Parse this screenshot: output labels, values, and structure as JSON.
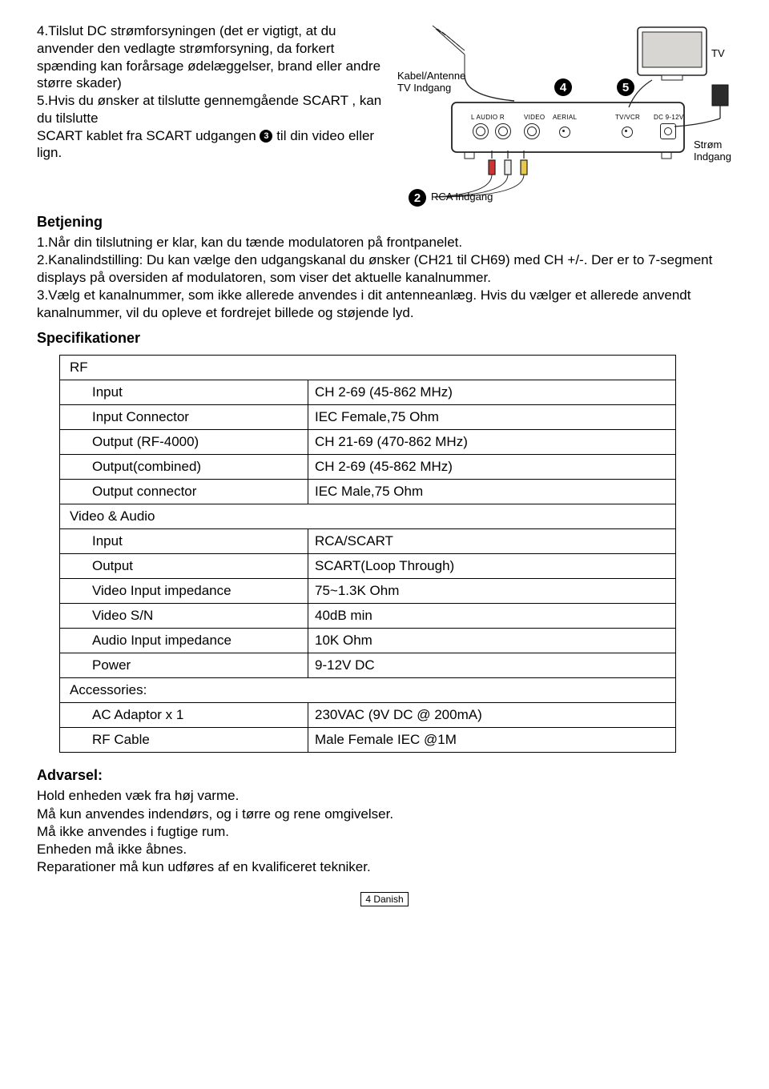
{
  "intro": {
    "item4": "4.Tilslut DC strømforsyningen (det er vigtigt, at du anvender den vedlagte strømforsyning, da forkert spænding kan forårsage ødelæggelser, brand eller andre større skader)",
    "item5a": "5.Hvis du ønsker at tilslutte gennemgående SCART , kan du tilslutte",
    "item5b": "SCART kablet fra SCART udgangen ",
    "item5c": " til din video eller lign."
  },
  "diagram": {
    "kabel": "Kabel/Antenne\nTV Indgang",
    "tv": "TV",
    "strom": "Strøm\nIndgang",
    "rca": "RCA Indgang",
    "ports": {
      "laudio": "L AUDIO R",
      "video": "VIDEO",
      "aerial": "AERIAL",
      "tvvcr": "TV/VCR",
      "dc": "DC 9-12V"
    }
  },
  "betjening": {
    "title": "Betjening",
    "l1": "1.Når din tilslutning er klar, kan du tænde modulatoren på frontpanelet.",
    "l2": "2.Kanalindstilling: Du kan vælge den udgangskanal du ønsker (CH21 til CH69) med CH +/-. Der er to 7-segment displays på oversiden af modulatoren, som viser det aktuelle kanalnummer.",
    "l3": "3.Vælg et kanalnummer, som ikke allerede anvendes i dit antenneanlæg. Hvis du vælger et allerede anvendt kanalnummer, vil du opleve et fordrejet billede og støjende lyd."
  },
  "spec": {
    "title": "Specifikationer",
    "groups": [
      {
        "header": "RF",
        "span": 2,
        "rows": [
          [
            "Input",
            "CH 2-69 (45-862 MHz)"
          ],
          [
            "Input Connector",
            "IEC Female,75 Ohm"
          ],
          [
            "Output (RF-4000)",
            "CH 21-69 (470-862 MHz)"
          ],
          [
            "Output(combined)",
            "CH 2-69 (45-862 MHz)"
          ],
          [
            "Output connector",
            "IEC Male,75 Ohm"
          ]
        ]
      },
      {
        "header": "Video & Audio",
        "span": 2,
        "rows": [
          [
            "Input",
            "RCA/SCART"
          ],
          [
            "Output",
            "SCART(Loop Through)"
          ],
          [
            "Video Input impedance",
            "75~1.3K Ohm"
          ],
          [
            "Video S/N",
            "40dB min"
          ],
          [
            "Audio Input impedance",
            "10K Ohm"
          ],
          [
            "Power",
            "9-12V DC"
          ]
        ]
      },
      {
        "header": "Accessories:",
        "span": 2,
        "rows": [
          [
            "AC Adaptor x 1",
            "230VAC (9V DC @ 200mA)"
          ],
          [
            "RF Cable",
            "Male Female IEC @1M"
          ]
        ]
      }
    ]
  },
  "advarsel": {
    "title": "Advarsel:",
    "lines": [
      "Hold enheden væk fra høj varme.",
      "Må kun anvendes indendørs, og i tørre og rene omgivelser.",
      "Må ikke anvendes i fugtige rum.",
      "Enheden må ikke åbnes.",
      "Reparationer må kun udføres af en kvalificeret tekniker."
    ]
  },
  "footer": "4 Danish",
  "colors": {
    "text": "#000000",
    "bg": "#ffffff",
    "line": "#222222"
  }
}
